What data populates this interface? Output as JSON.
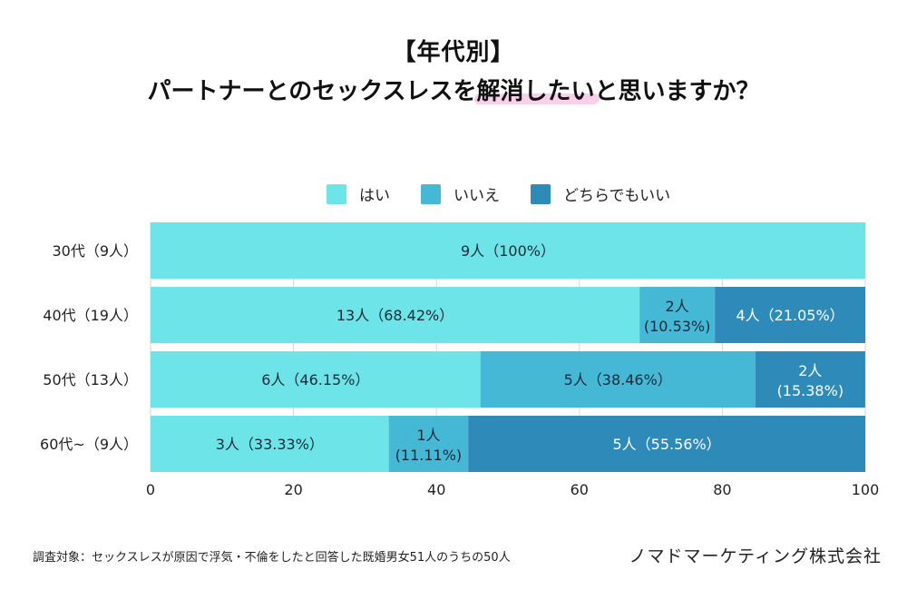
{
  "title": {
    "line1": "【年代別】",
    "line2_pre": "パートナーとのセックスレスを",
    "line2_highlight": "解消したい",
    "line2_post": "と思いますか？"
  },
  "footnote": "調査対象：セックスレスが原因で浮気・不倫をしたと回答した既婚男女51人のうちの50人",
  "company": "ノマドマーケティング株式会社",
  "chart_data": {
    "type": "bar",
    "orientation": "horizontal",
    "stacked": true,
    "title": "【年代別】パートナーとのセックスレスを解消したいと思いますか？",
    "xlabel": "",
    "ylabel": "",
    "xlim": [
      0,
      100
    ],
    "xticks": [
      0,
      20,
      40,
      60,
      80,
      100
    ],
    "grid": true,
    "legend_position": "top-center",
    "categories": [
      "30代（9人）",
      "40代（19人）",
      "50代（13人）",
      "60代~（9人）"
    ],
    "series": [
      {
        "name": "はい",
        "color": "#6DE4E7",
        "label_color": "#1B2A3A",
        "values": [
          100,
          68.42,
          46.15,
          33.33
        ],
        "labels": [
          [
            "9人（100%）"
          ],
          [
            "13人（68.42%）"
          ],
          [
            "6人（46.15%）"
          ],
          [
            "3人（33.33%）"
          ]
        ]
      },
      {
        "name": "いいえ",
        "color": "#45B8D6",
        "label_color": "#1B2A3A",
        "values": [
          0,
          10.53,
          38.46,
          11.11
        ],
        "labels": [
          [],
          [
            "2人",
            "(10.53%)"
          ],
          [
            "5人（38.46%）"
          ],
          [
            "1人",
            "(11.11%)"
          ]
        ]
      },
      {
        "name": "どちらでもいい",
        "color": "#2E8AB8",
        "label_color": "#FFFFFF",
        "values": [
          0,
          21.05,
          15.38,
          55.56
        ],
        "labels": [
          [],
          [
            "4人（21.05%）"
          ],
          [
            "2人",
            "(15.38%)"
          ],
          [
            "5人（55.56%）"
          ]
        ]
      }
    ]
  }
}
